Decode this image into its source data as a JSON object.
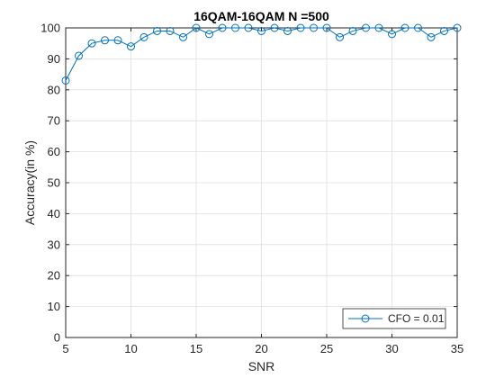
{
  "chart_data": {
    "type": "line",
    "title": "16QAM-16QAM N =500",
    "xlabel": "SNR",
    "ylabel": "Accuracy(in %)",
    "xlim": [
      5,
      35
    ],
    "ylim": [
      0,
      100
    ],
    "xticks": [
      5,
      10,
      15,
      20,
      25,
      30,
      35
    ],
    "yticks": [
      0,
      10,
      20,
      30,
      40,
      50,
      60,
      70,
      80,
      90,
      100
    ],
    "grid": true,
    "legend_position": "bottom-right",
    "series": [
      {
        "name": "CFO = 0.01",
        "color": "#0072BD",
        "marker": "circle",
        "x": [
          5,
          6,
          7,
          8,
          9,
          10,
          11,
          12,
          13,
          14,
          15,
          16,
          17,
          18,
          19,
          20,
          21,
          22,
          23,
          24,
          25,
          26,
          27,
          28,
          29,
          30,
          31,
          32,
          33,
          34,
          35
        ],
        "y": [
          83,
          91,
          95,
          96,
          96,
          94,
          97,
          99,
          99,
          97,
          100,
          98,
          100,
          100,
          100,
          99,
          100,
          99,
          100,
          100,
          100,
          97,
          99,
          100,
          100,
          98,
          100,
          100,
          97,
          99,
          100
        ]
      }
    ]
  }
}
